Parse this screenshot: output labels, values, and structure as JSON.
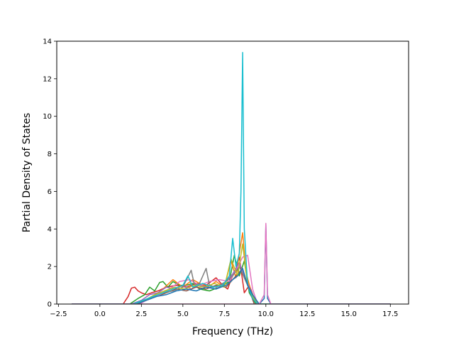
{
  "chart_data": {
    "type": "line",
    "title": "",
    "xlabel": "Frequency (THz)",
    "ylabel": "Partial Density of States",
    "xlim": [
      -2.6,
      18.6
    ],
    "ylim": [
      0,
      14
    ],
    "xticks": [
      -2.5,
      0.0,
      2.5,
      5.0,
      7.5,
      10.0,
      12.5,
      15.0,
      17.5
    ],
    "xtick_labels": [
      "−2.5",
      "0.0",
      "2.5",
      "5.0",
      "7.5",
      "10.0",
      "12.5",
      "15.0",
      "17.5"
    ],
    "yticks": [
      0,
      2,
      4,
      6,
      8,
      10,
      12,
      14
    ],
    "ytick_labels": [
      "0",
      "2",
      "4",
      "6",
      "8",
      "10",
      "12",
      "14"
    ],
    "grid": false,
    "legend": "none",
    "series": [
      {
        "color": "#d62728",
        "x": [
          -1.7,
          1.4,
          1.7,
          1.9,
          2.1,
          2.3,
          2.5,
          2.8,
          3.1,
          3.5,
          4.0,
          4.6,
          5.2,
          5.8,
          6.4,
          7.0,
          7.4,
          7.7,
          7.9,
          8.2,
          8.4,
          8.7,
          9.0,
          9.3,
          9.5,
          17.5
        ],
        "y": [
          0,
          0,
          0.4,
          0.85,
          0.9,
          0.7,
          0.6,
          0.5,
          0.6,
          0.7,
          0.9,
          1.0,
          0.9,
          1.1,
          1.0,
          1.4,
          1.0,
          0.8,
          1.3,
          1.9,
          2.5,
          0.6,
          1.0,
          0.3,
          0,
          0
        ]
      },
      {
        "color": "#2ca02c",
        "x": [
          -1.7,
          1.8,
          2.3,
          2.7,
          3.0,
          3.3,
          3.6,
          3.8,
          4.1,
          4.4,
          4.8,
          5.2,
          5.6,
          6.0,
          6.6,
          7.2,
          7.8,
          8.1,
          8.4,
          8.7,
          9.0,
          9.4,
          17.5
        ],
        "y": [
          0,
          0,
          0.3,
          0.5,
          0.9,
          0.7,
          1.15,
          1.2,
          0.9,
          1.2,
          1.0,
          1.0,
          1.1,
          0.8,
          0.7,
          0.9,
          1.2,
          2.6,
          1.5,
          2.3,
          0.6,
          0,
          0
        ]
      },
      {
        "color": "#ff7f0e",
        "x": [
          -1.7,
          2.0,
          2.6,
          3.2,
          3.8,
          4.4,
          5.0,
          5.6,
          6.0,
          6.5,
          7.0,
          7.5,
          7.9,
          8.2,
          8.4,
          8.6,
          8.8,
          9.1,
          9.5,
          17.5
        ],
        "y": [
          0,
          0,
          0.2,
          0.4,
          0.8,
          1.3,
          0.9,
          1.3,
          1.1,
          0.9,
          1.2,
          0.9,
          2.3,
          1.4,
          2.7,
          3.8,
          1.7,
          0.7,
          0,
          0
        ]
      },
      {
        "color": "#9467bd",
        "x": [
          -1.7,
          1.9,
          2.5,
          3.0,
          3.5,
          4.0,
          4.5,
          5.0,
          5.5,
          6.0,
          6.5,
          7.0,
          7.5,
          8.0,
          8.4,
          8.8,
          9.2,
          9.5,
          17.5
        ],
        "y": [
          0,
          0,
          0.2,
          0.5,
          0.6,
          0.9,
          0.8,
          1.0,
          0.8,
          1.0,
          0.9,
          0.8,
          1.1,
          1.6,
          2.2,
          1.3,
          0.5,
          0,
          0
        ]
      },
      {
        "color": "#8c564b",
        "x": [
          -1.7,
          2.2,
          2.8,
          3.4,
          4.0,
          4.6,
          5.2,
          5.8,
          6.4,
          7.0,
          7.6,
          8.1,
          8.5,
          8.9,
          9.3,
          17.5
        ],
        "y": [
          0,
          0,
          0.2,
          0.4,
          0.6,
          0.8,
          0.7,
          0.9,
          0.8,
          1.0,
          0.9,
          1.4,
          1.8,
          1.0,
          0,
          0
        ]
      },
      {
        "color": "#e377c2",
        "x": [
          -1.7,
          2.4,
          3.0,
          3.6,
          4.2,
          4.8,
          5.4,
          6.0,
          6.6,
          7.2,
          7.8,
          8.2,
          8.6,
          8.9,
          9.2,
          9.5,
          17.5
        ],
        "y": [
          0,
          0,
          0.3,
          0.5,
          0.8,
          1.2,
          1.3,
          1.0,
          1.2,
          1.3,
          1.2,
          1.8,
          2.5,
          2.6,
          0.8,
          0,
          0
        ]
      },
      {
        "color": "#7f7f7f",
        "x": [
          -1.7,
          2.3,
          2.7,
          3.2,
          3.8,
          4.4,
          5.0,
          5.5,
          5.7,
          6.0,
          6.4,
          6.6,
          7.0,
          7.6,
          8.0,
          8.4,
          8.8,
          9.2,
          9.5,
          17.5
        ],
        "y": [
          0,
          0,
          0.2,
          0.4,
          0.6,
          0.7,
          0.9,
          1.8,
          1.0,
          1.1,
          1.9,
          1.0,
          0.9,
          1.2,
          1.5,
          2.0,
          1.2,
          0.5,
          0,
          0
        ]
      },
      {
        "color": "#bcbd22",
        "x": [
          -1.7,
          2.1,
          2.7,
          3.3,
          3.9,
          4.5,
          5.1,
          5.7,
          6.3,
          6.9,
          7.5,
          7.9,
          8.3,
          8.6,
          8.9,
          9.2,
          9.5,
          17.5
        ],
        "y": [
          0,
          0,
          0.2,
          0.5,
          0.7,
          0.9,
          0.8,
          1.0,
          0.9,
          1.1,
          0.9,
          2.4,
          1.5,
          3.2,
          1.0,
          0.4,
          0,
          0
        ]
      },
      {
        "color": "#17becf",
        "x": [
          -1.7,
          2.0,
          2.6,
          3.2,
          3.8,
          4.4,
          5.0,
          5.3,
          5.6,
          6.2,
          6.8,
          7.4,
          7.8,
          8.0,
          8.2,
          8.4,
          8.5,
          8.6,
          8.7,
          8.9,
          9.2,
          9.5,
          17.5
        ],
        "y": [
          0,
          0,
          0.2,
          0.4,
          0.6,
          0.8,
          1.0,
          1.5,
          0.9,
          1.1,
          0.9,
          1.0,
          1.5,
          3.5,
          2.0,
          2.7,
          6.0,
          13.4,
          4.0,
          1.0,
          0.3,
          0,
          0
        ]
      },
      {
        "color": "#1f77b4",
        "x": [
          -1.7,
          2.2,
          2.8,
          3.4,
          4.0,
          4.6,
          5.2,
          5.8,
          6.4,
          7.0,
          7.6,
          8.0,
          8.3,
          8.6,
          8.9,
          9.2,
          9.6,
          9.9,
          10.0,
          10.1,
          10.3,
          17.5
        ],
        "y": [
          0,
          0,
          0.2,
          0.4,
          0.5,
          0.7,
          0.8,
          0.7,
          0.9,
          0.8,
          1.0,
          1.3,
          1.5,
          1.9,
          1.0,
          0.5,
          0,
          0.3,
          4.2,
          0.3,
          0,
          0
        ]
      },
      {
        "color": "#e377c2",
        "x": [
          -1.7,
          9.6,
          9.9,
          10.0,
          10.1,
          10.3,
          17.5
        ],
        "y": [
          0,
          0,
          0.5,
          4.3,
          0.5,
          0,
          0
        ]
      }
    ]
  }
}
